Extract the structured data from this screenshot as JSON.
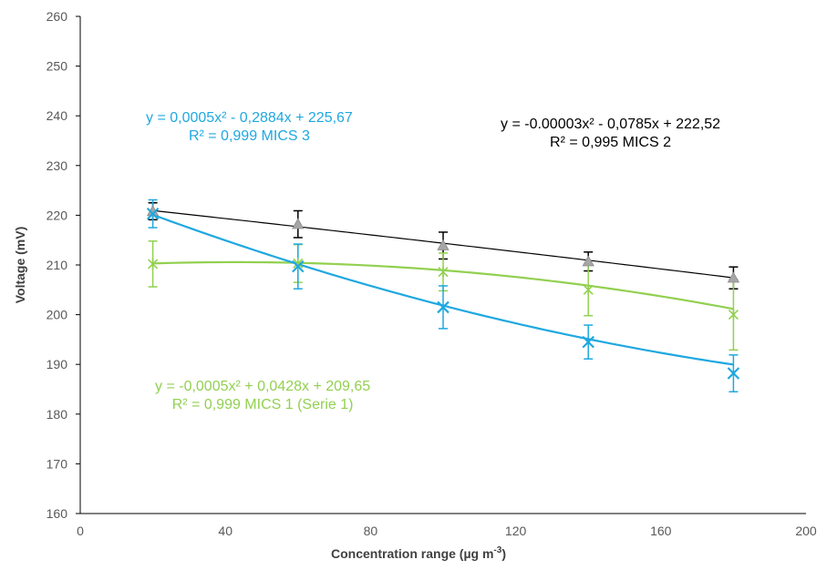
{
  "chart_data": {
    "type": "scatter",
    "xlabel": "Concentration range (µg m",
    "xlabel_sup": "-3",
    "xlabel_end": ")",
    "ylabel": "Voltage (mV)",
    "xlim": [
      0,
      200
    ],
    "ylim": [
      160,
      260
    ],
    "x_ticks": [
      "0",
      "40",
      "80",
      "120",
      "160",
      "200"
    ],
    "y_ticks": [
      "160",
      "170",
      "180",
      "190",
      "200",
      "210",
      "220",
      "230",
      "240",
      "250",
      "260"
    ],
    "grid": false,
    "x": [
      20,
      60,
      100,
      140,
      180
    ],
    "series": [
      {
        "name": "MICS 2",
        "color": "#000000",
        "marker_color": "#a6a6a6",
        "marker": "triangle",
        "values": [
          220.8,
          218.2,
          213.9,
          210.7,
          207.4
        ],
        "errors": [
          1.7,
          2.7,
          2.7,
          1.9,
          2.2
        ],
        "fit": [
          -3e-05,
          -0.0785,
          222.52
        ],
        "equation": "y = -0.00003x² - 0,0785x + 222,52",
        "r2": "R² = 0,995  MICS 2"
      },
      {
        "name": "MICS 1 (Serie 1)",
        "color": "#92d050",
        "marker_color": "#92d050",
        "marker": "star",
        "values": [
          210.2,
          210.3,
          208.6,
          205.0,
          200.0
        ],
        "errors": [
          4.6,
          3.8,
          3.8,
          5.2,
          7.1
        ],
        "fit": [
          -0.0005,
          0.0428,
          209.65
        ],
        "equation": "y = -0,0005x² + 0,0428x + 209,65",
        "r2": "R² = 0,999  MICS 1 (Serie 1)"
      },
      {
        "name": "MICS 3",
        "color": "#1fa8e0",
        "marker_color": "#1fa8e0",
        "marker": "x",
        "values": [
          220.3,
          209.7,
          201.5,
          194.5,
          188.2
        ],
        "errors": [
          2.8,
          4.5,
          4.3,
          3.4,
          3.7
        ],
        "fit": [
          0.0005,
          -0.2884,
          225.67
        ],
        "equation": "y = 0,0005x² - 0,2884x + 225,67",
        "r2": "R² = 0,999   MICS 3"
      }
    ]
  }
}
